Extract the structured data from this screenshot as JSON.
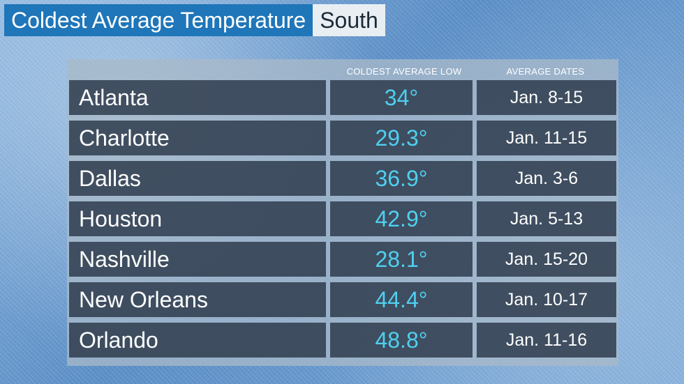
{
  "title": {
    "main": "Coldest Average Temperature",
    "region": "South"
  },
  "table": {
    "headers": {
      "low": "COLDEST AVERAGE LOW",
      "dates": "AVERAGE DATES"
    },
    "rows": [
      {
        "city": "Atlanta",
        "low": "34°",
        "dates": "Jan. 8-15"
      },
      {
        "city": "Charlotte",
        "low": "29.3°",
        "dates": "Jan. 11-15"
      },
      {
        "city": "Dallas",
        "low": "36.9°",
        "dates": "Jan. 3-6"
      },
      {
        "city": "Houston",
        "low": "42.9°",
        "dates": "Jan. 5-13"
      },
      {
        "city": "Nashville",
        "low": "28.1°",
        "dates": "Jan. 15-20"
      },
      {
        "city": "New Orleans",
        "low": "44.4°",
        "dates": "Jan. 10-17"
      },
      {
        "city": "Orlando",
        "low": "48.8°",
        "dates": "Jan. 11-16"
      }
    ]
  },
  "colors": {
    "title_bg": "#1f76b9",
    "region_bg": "#e9eef3",
    "temp_text": "#4fd0f0",
    "cell_bg": "#2a3748"
  }
}
